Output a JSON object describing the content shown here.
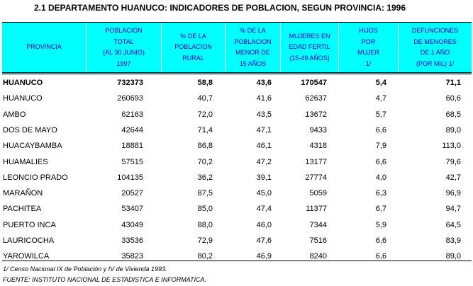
{
  "title": "2.1 DEPARTAMENTO HUANUCO:  INDICADORES DE POBLACION, SEGUN PROVINCIA: 1996",
  "table": {
    "header": [
      [
        "PROVINCIA"
      ],
      [
        "POBLACION",
        "TOTAL",
        "(AL 30 JUNIO)",
        "1997"
      ],
      [
        "% DE LA",
        "POBLACION",
        "RURAL"
      ],
      [
        "% DE LA",
        "POBLACION",
        "MENOR DE",
        "15 AÑOS"
      ],
      [
        "MUJERES EN",
        "EDAD FERTIL",
        "(15-49 AÑOS)"
      ],
      [
        "HIJOS",
        "POR",
        "MUJER",
        "1/"
      ],
      [
        "DEFUNCIONES",
        "DE MENORES",
        "DE 1 AÑO",
        "(POR MIL) 1/"
      ]
    ],
    "rows": [
      [
        "HUANUCO",
        "732373",
        "58,8",
        "43,6",
        "170547",
        "5,4",
        "71,1"
      ],
      [
        "HUANUCO",
        "260693",
        "40,7",
        "41,6",
        "62637",
        "4,7",
        "60,6"
      ],
      [
        "AMBO",
        "62163",
        "72,0",
        "43,5",
        "13672",
        "5,7",
        "68,5"
      ],
      [
        "DOS DE MAYO",
        "42644",
        "71,4",
        "47,1",
        "9433",
        "6,6",
        "89,0"
      ],
      [
        "HUACAYBAMBA",
        "18881",
        "86,8",
        "46,1",
        "4318",
        "7,9",
        "113,0"
      ],
      [
        "HUAMALIES",
        "57515",
        "70,2",
        "47,2",
        "13177",
        "6,6",
        "79,6"
      ],
      [
        "LEONCIO PRADO",
        "104135",
        "36,2",
        "39,1",
        "27774",
        "4,0",
        "42,7"
      ],
      [
        "MARAÑON",
        "20527",
        "87,5",
        "45,0",
        "5059",
        "6,3",
        "96,9"
      ],
      [
        "PACHITEA",
        "53407",
        "85,0",
        "47,4",
        "11377",
        "6,7",
        "94,7"
      ],
      [
        "PUERTO INCA",
        "43049",
        "88,0",
        "46,0",
        "7344",
        "5,9",
        "64,5"
      ],
      [
        "LAURICOCHA",
        "33536",
        "72,9",
        "47,6",
        "7516",
        "6,6",
        "83,9"
      ],
      [
        "YAROWILCA",
        "35823",
        "80,2",
        "46,9",
        "8240",
        "6,6",
        "89,0"
      ]
    ]
  },
  "footnotes": [
    "1/ Censo Nacional IX de Población y IV de Vivienda 1993.",
    "FUENTE: INSTITUTO NACIONAL DE ESTADISTICA E INFORMATICA."
  ]
}
